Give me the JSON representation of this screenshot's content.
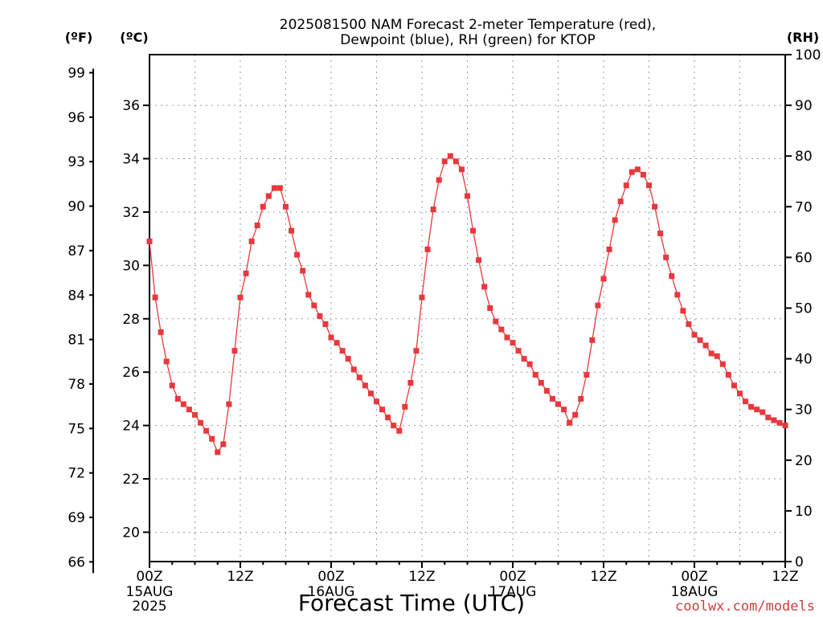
{
  "chart_data": {
    "type": "line",
    "title_line1": "2025081500 NAM Forecast 2-meter Temperature (red),",
    "title_line2": "Dewpoint (blue), RH (green) for KTOP",
    "xlabel": "Forecast Time (UTC)",
    "credit": "coolwx.com/models",
    "axis_units": {
      "fahrenheit": "(ºF)",
      "celsius": "(ºC)",
      "rh": "(RH)"
    },
    "x_hours_range": [
      0,
      84
    ],
    "x_ticks": [
      {
        "hour": 0,
        "label": "00Z",
        "sub1": "15AUG",
        "sub2": "2025"
      },
      {
        "hour": 12,
        "label": "12Z",
        "sub1": "",
        "sub2": ""
      },
      {
        "hour": 24,
        "label": "00Z",
        "sub1": "16AUG",
        "sub2": ""
      },
      {
        "hour": 36,
        "label": "12Z",
        "sub1": "",
        "sub2": ""
      },
      {
        "hour": 48,
        "label": "00Z",
        "sub1": "17AUG",
        "sub2": ""
      },
      {
        "hour": 60,
        "label": "12Z",
        "sub1": "",
        "sub2": ""
      },
      {
        "hour": 72,
        "label": "00Z",
        "sub1": "18AUG",
        "sub2": ""
      },
      {
        "hour": 84,
        "label": "12Z",
        "sub1": "",
        "sub2": ""
      }
    ],
    "ylim_celsius": [
      18.9,
      37.9
    ],
    "ylim_rh": [
      0,
      100
    ],
    "celsius_ticks": [
      "20",
      "22",
      "24",
      "26",
      "28",
      "30",
      "32",
      "34",
      "36"
    ],
    "fahrenheit_ticks": [
      "66",
      "69",
      "72",
      "75",
      "78",
      "81",
      "84",
      "87",
      "90",
      "93",
      "96",
      "99"
    ],
    "rh_ticks": [
      "0",
      "10",
      "20",
      "30",
      "40",
      "50",
      "60",
      "70",
      "80",
      "90",
      "100"
    ],
    "grid": true,
    "series": [
      {
        "key": "temperature",
        "color": "#e8383d",
        "marker": "filled-square",
        "axis": "celsius",
        "values": [
          30.9,
          28.8,
          27.5,
          26.4,
          25.5,
          25.0,
          24.8,
          24.6,
          24.4,
          24.1,
          23.8,
          23.5,
          23.0,
          23.3,
          24.8,
          26.8,
          28.8,
          29.7,
          30.9,
          31.5,
          32.2,
          32.6,
          32.9,
          32.9,
          32.2,
          31.3,
          30.4,
          29.8,
          28.9,
          28.5,
          28.1,
          27.8,
          27.3,
          27.1,
          26.8,
          26.5,
          26.1,
          25.8,
          25.5,
          25.2,
          24.9,
          24.6,
          24.3,
          24.0,
          23.8,
          24.7,
          25.6,
          26.8,
          28.8,
          30.6,
          32.1,
          33.2,
          33.9,
          34.1,
          33.9,
          33.6,
          32.6,
          31.3,
          30.2,
          29.2,
          28.4,
          27.9,
          27.6,
          27.3,
          27.1,
          26.8,
          26.5,
          26.3,
          25.9,
          25.6,
          25.3,
          25.0,
          24.8,
          24.6,
          24.1,
          24.4,
          25.0,
          25.9,
          27.2,
          28.5,
          29.5,
          30.6,
          31.7,
          32.4,
          33.0,
          33.5,
          33.6,
          33.4,
          33.0,
          32.2,
          31.2,
          30.3,
          29.6,
          28.9,
          28.3,
          27.8,
          27.4,
          27.2,
          27.0,
          26.7,
          26.6,
          26.3,
          25.9,
          25.5,
          25.2,
          24.9,
          24.7,
          24.6,
          24.5,
          24.3,
          24.2,
          24.1,
          24.0
        ]
      }
    ]
  }
}
